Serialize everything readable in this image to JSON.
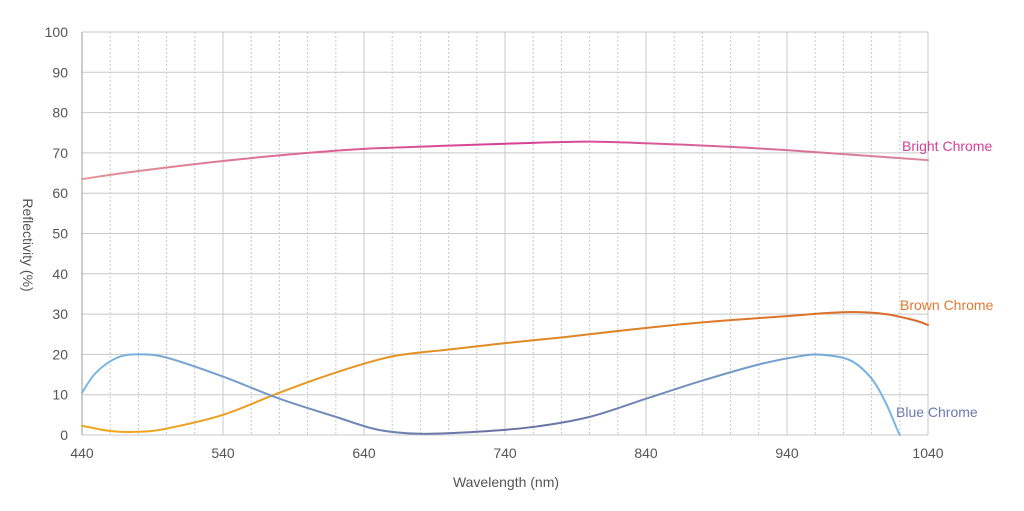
{
  "chart_data": {
    "type": "line",
    "title": "",
    "xlabel": "Wavelength (nm)",
    "ylabel": "Reflectivity (%)",
    "xlim": [
      440,
      1040
    ],
    "ylim": [
      0,
      100
    ],
    "x_ticks": [
      440,
      540,
      640,
      740,
      840,
      940,
      1040
    ],
    "y_ticks": [
      0,
      10,
      20,
      30,
      40,
      50,
      60,
      70,
      80,
      90,
      100
    ],
    "grid": true,
    "legend": "inline-labels-right",
    "series": [
      {
        "name": "Bright Chrome",
        "label_color": "#d63f96",
        "gradient": [
          "#e19595",
          "#d63f96",
          "#d88a9c"
        ],
        "points": [
          [
            440,
            63.5
          ],
          [
            480,
            65.5
          ],
          [
            540,
            68
          ],
          [
            600,
            70
          ],
          [
            640,
            71
          ],
          [
            700,
            71.8
          ],
          [
            760,
            72.5
          ],
          [
            800,
            72.8
          ],
          [
            840,
            72.4
          ],
          [
            900,
            71.5
          ],
          [
            960,
            70.2
          ],
          [
            1000,
            69.2
          ],
          [
            1040,
            68.2
          ]
        ]
      },
      {
        "name": "Brown Chrome",
        "label_color": "#e07a30",
        "gradient": [
          "#f2a81c",
          "#e08a24",
          "#d86a2c"
        ],
        "points": [
          [
            440,
            2.3
          ],
          [
            460,
            1.0
          ],
          [
            480,
            0.8
          ],
          [
            500,
            1.6
          ],
          [
            540,
            5
          ],
          [
            580,
            10.5
          ],
          [
            620,
            15.5
          ],
          [
            660,
            19.5
          ],
          [
            700,
            21.2
          ],
          [
            740,
            22.8
          ],
          [
            780,
            24.2
          ],
          [
            820,
            25.8
          ],
          [
            860,
            27.3
          ],
          [
            900,
            28.5
          ],
          [
            940,
            29.5
          ],
          [
            970,
            30.3
          ],
          [
            990,
            30.5
          ],
          [
            1010,
            30.0
          ],
          [
            1030,
            28.5
          ],
          [
            1040,
            27.3
          ]
        ]
      },
      {
        "name": "Blue Chrome",
        "label_color": "#6a7ab0",
        "gradient": [
          "#7bb8e3",
          "#6a6ea0",
          "#7bbde8"
        ],
        "points": [
          [
            440,
            10.5
          ],
          [
            450,
            15.5
          ],
          [
            465,
            19.2
          ],
          [
            480,
            20
          ],
          [
            500,
            19.2
          ],
          [
            540,
            14.5
          ],
          [
            580,
            9
          ],
          [
            620,
            4.5
          ],
          [
            650,
            1.3
          ],
          [
            680,
            0.3
          ],
          [
            720,
            0.8
          ],
          [
            760,
            2
          ],
          [
            800,
            4.5
          ],
          [
            840,
            9
          ],
          [
            880,
            13.5
          ],
          [
            920,
            17.5
          ],
          [
            950,
            19.6
          ],
          [
            965,
            19.9
          ],
          [
            985,
            18.5
          ],
          [
            1000,
            14
          ],
          [
            1010,
            8
          ],
          [
            1018,
            1.5
          ],
          [
            1020,
            0
          ]
        ]
      }
    ]
  }
}
